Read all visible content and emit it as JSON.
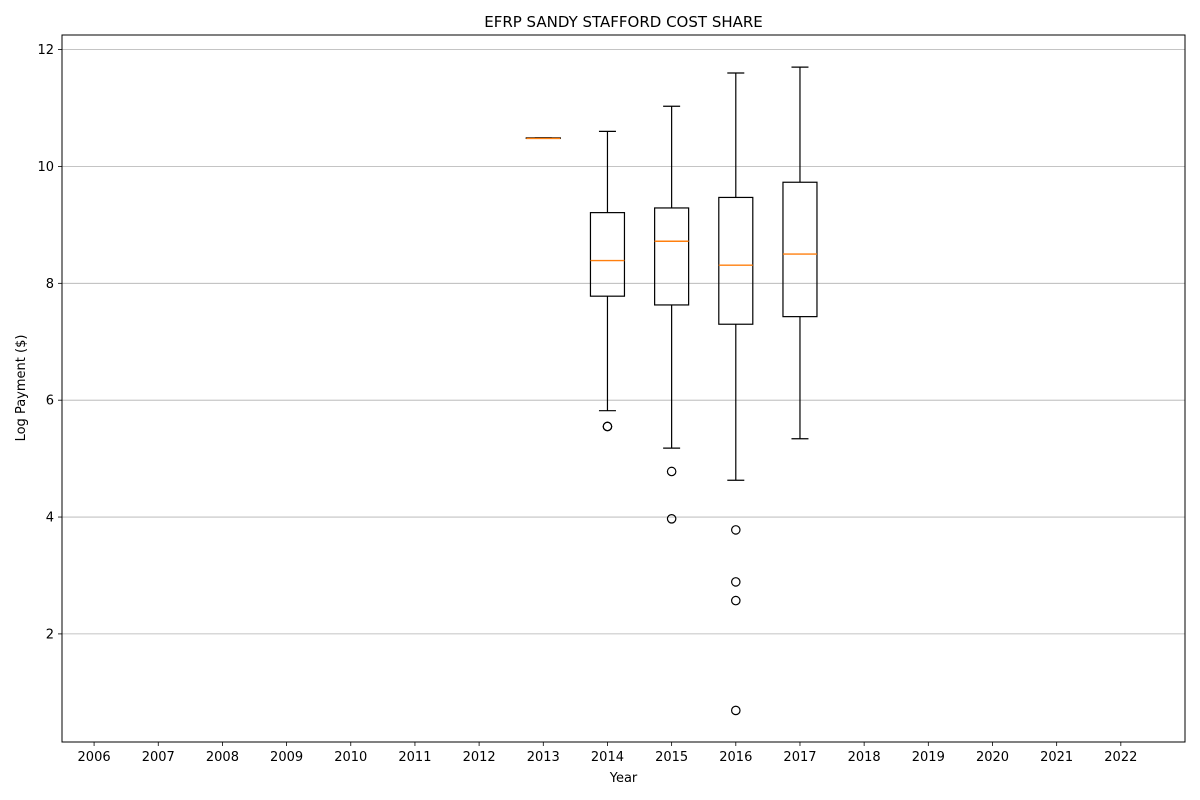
{
  "chart_data": {
    "type": "boxplot",
    "title": "EFRP SANDY STAFFORD COST SHARE",
    "xlabel": "Year",
    "ylabel": "Log Payment ($)",
    "categories": [
      "2006",
      "2007",
      "2008",
      "2009",
      "2010",
      "2011",
      "2012",
      "2013",
      "2014",
      "2015",
      "2016",
      "2017",
      "2018",
      "2019",
      "2020",
      "2021",
      "2022"
    ],
    "ylim": [
      0.15,
      12.25
    ],
    "yticks": [
      "2",
      "4",
      "6",
      "8",
      "10",
      "12"
    ],
    "grid": "y",
    "boxes": [
      {
        "year": "2013",
        "whisker_low": 10.48,
        "q1": 10.48,
        "median": 10.48,
        "q3": 10.49,
        "whisker_high": 10.49,
        "outliers": []
      },
      {
        "year": "2014",
        "whisker_low": 5.82,
        "q1": 7.78,
        "median": 8.39,
        "q3": 9.21,
        "whisker_high": 10.6,
        "outliers": [
          5.55,
          5.55
        ]
      },
      {
        "year": "2015",
        "whisker_low": 5.18,
        "q1": 7.63,
        "median": 8.72,
        "q3": 9.29,
        "whisker_high": 11.03,
        "outliers": [
          4.78,
          3.97
        ]
      },
      {
        "year": "2016",
        "whisker_low": 4.63,
        "q1": 7.3,
        "median": 8.31,
        "q3": 9.47,
        "whisker_high": 11.6,
        "outliers": [
          3.78,
          2.89,
          2.57,
          0.69
        ]
      },
      {
        "year": "2017",
        "whisker_low": 5.34,
        "q1": 7.43,
        "median": 8.5,
        "q3": 9.73,
        "whisker_high": 11.7,
        "outliers": []
      }
    ],
    "colors": {
      "box": "#000000",
      "median": "#ff7f0e",
      "grid": "#b0b0b0"
    }
  }
}
